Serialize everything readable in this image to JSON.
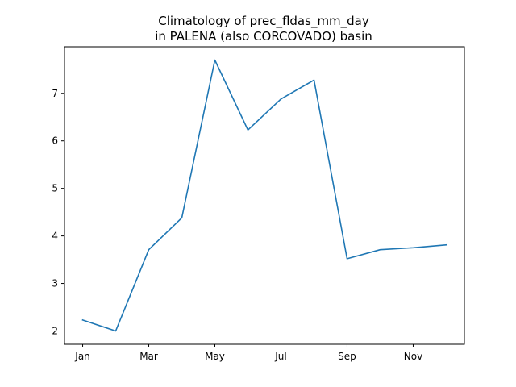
{
  "chart_data": {
    "type": "line",
    "title_line1": "Climatology of prec_fldas_mm_day",
    "title_line2": "in PALENA (also CORCOVADO) basin",
    "xlabel": "",
    "ylabel": "",
    "x_tick_labels": [
      "Jan",
      "Mar",
      "May",
      "Jul",
      "Sep",
      "Nov"
    ],
    "x_tick_months": [
      1,
      3,
      5,
      7,
      9,
      11
    ],
    "y_ticks": [
      2,
      3,
      4,
      5,
      6,
      7
    ],
    "xlim": [
      0.45,
      12.55
    ],
    "ylim": [
      1.72,
      7.98
    ],
    "grid": false,
    "series": [
      {
        "color": "#1f77b4",
        "x": [
          1,
          2,
          3,
          4,
          5,
          6,
          7,
          8,
          9,
          10,
          11,
          12
        ],
        "values": [
          2.23,
          2.0,
          3.71,
          4.38,
          7.7,
          6.23,
          6.88,
          7.28,
          3.52,
          3.71,
          3.75,
          3.81
        ]
      }
    ]
  }
}
